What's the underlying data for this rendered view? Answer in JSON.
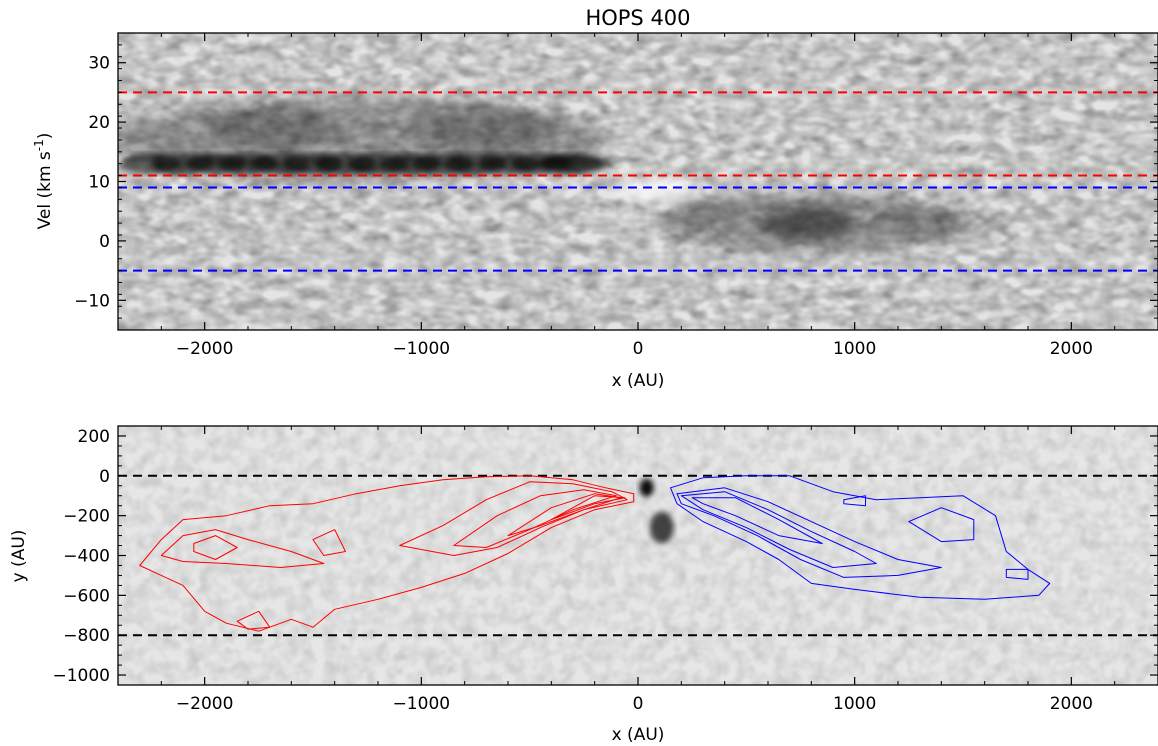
{
  "chart_data": [
    {
      "type": "heatmap",
      "title": "HOPS 400",
      "xlabel": "x (AU)",
      "ylabel_main": "Vel (km s",
      "ylabel_sup": "-1",
      "ylabel_close": ")",
      "xlim": [
        -2400,
        2400
      ],
      "ylim": [
        -15,
        35
      ],
      "xticks": [
        -2000,
        -1000,
        0,
        1000,
        2000
      ],
      "xtick_labels": [
        "−2000",
        "−1000",
        "0",
        "1000",
        "2000"
      ],
      "yticks": [
        -10,
        0,
        10,
        20,
        30
      ],
      "ytick_labels": [
        "−10",
        "0",
        "10",
        "20",
        "30"
      ],
      "colormap": "inverted grayscale",
      "dashed_lines": [
        {
          "axis": "y",
          "value": 25,
          "color": "#ff0000"
        },
        {
          "axis": "y",
          "value": 11,
          "color": "#ff0000"
        },
        {
          "axis": "y",
          "value": 9,
          "color": "#0000ff"
        },
        {
          "axis": "y",
          "value": -5,
          "color": "#0000ff"
        }
      ],
      "emission_features": [
        {
          "x_range": [
            -2400,
            -100
          ],
          "v_range": [
            10,
            25
          ],
          "peak_v": 13,
          "side": "red"
        },
        {
          "x_range": [
            100,
            2000
          ],
          "v_range": [
            -5,
            9
          ],
          "peak_v": 3,
          "side": "blue"
        }
      ]
    },
    {
      "type": "heatmap",
      "xlabel": "x (AU)",
      "ylabel": "y (AU)",
      "xlim": [
        -2400,
        2400
      ],
      "ylim": [
        -1050,
        250
      ],
      "xticks": [
        -2000,
        -1000,
        0,
        1000,
        2000
      ],
      "xtick_labels": [
        "−2000",
        "−1000",
        "0",
        "1000",
        "2000"
      ],
      "yticks": [
        200,
        0,
        -200,
        -400,
        -600,
        -800,
        -1000
      ],
      "ytick_labels": [
        "200",
        "0",
        "−200",
        "−400",
        "−600",
        "−800",
        "−1000"
      ],
      "colormap": "inverted grayscale",
      "dashed_lines": [
        {
          "axis": "y",
          "value": 0,
          "color": "#000000"
        },
        {
          "axis": "y",
          "value": -800,
          "color": "#000000"
        }
      ],
      "sources": [
        {
          "x": 40,
          "y": -60
        },
        {
          "x": 110,
          "y": -260
        }
      ],
      "contour_colors": {
        "red_lobe": "#ff0000",
        "blue_lobe": "#0000ff"
      },
      "red_contours": [
        [
          [
            -2300,
            -450
          ],
          [
            -2200,
            -320
          ],
          [
            -2100,
            -220
          ],
          [
            -1900,
            -200
          ],
          [
            -1700,
            -150
          ],
          [
            -1500,
            -140
          ],
          [
            -1300,
            -90
          ],
          [
            -1100,
            -50
          ],
          [
            -900,
            -20
          ],
          [
            -700,
            -5
          ],
          [
            -500,
            0
          ],
          [
            -300,
            -20
          ],
          [
            -150,
            -60
          ],
          [
            -20,
            -90
          ],
          [
            -20,
            -130
          ],
          [
            -200,
            -170
          ],
          [
            -400,
            -260
          ],
          [
            -600,
            -390
          ],
          [
            -800,
            -490
          ],
          [
            -1000,
            -560
          ],
          [
            -1200,
            -620
          ],
          [
            -1400,
            -670
          ],
          [
            -1500,
            -760
          ],
          [
            -1600,
            -720
          ],
          [
            -1750,
            -780
          ],
          [
            -1900,
            -740
          ],
          [
            -2000,
            -680
          ],
          [
            -2100,
            -550
          ],
          [
            -2200,
            -500
          ],
          [
            -2300,
            -450
          ]
        ],
        [
          [
            -2200,
            -400
          ],
          [
            -2100,
            -300
          ],
          [
            -1950,
            -270
          ],
          [
            -1800,
            -320
          ],
          [
            -1600,
            -380
          ],
          [
            -1450,
            -440
          ],
          [
            -1650,
            -460
          ],
          [
            -1900,
            -440
          ],
          [
            -2100,
            -430
          ],
          [
            -2200,
            -400
          ]
        ],
        [
          [
            -2050,
            -340
          ],
          [
            -1950,
            -300
          ],
          [
            -1850,
            -360
          ],
          [
            -1950,
            -420
          ],
          [
            -2050,
            -380
          ],
          [
            -2050,
            -340
          ]
        ],
        [
          [
            -1100,
            -350
          ],
          [
            -900,
            -250
          ],
          [
            -700,
            -120
          ],
          [
            -500,
            -30
          ],
          [
            -300,
            -40
          ],
          [
            -120,
            -80
          ],
          [
            -50,
            -120
          ],
          [
            -250,
            -170
          ],
          [
            -450,
            -260
          ],
          [
            -650,
            -360
          ],
          [
            -850,
            -400
          ],
          [
            -1100,
            -350
          ]
        ],
        [
          [
            -850,
            -350
          ],
          [
            -650,
            -200
          ],
          [
            -450,
            -100
          ],
          [
            -250,
            -70
          ],
          [
            -100,
            -100
          ],
          [
            -300,
            -170
          ],
          [
            -500,
            -270
          ],
          [
            -700,
            -360
          ],
          [
            -850,
            -350
          ]
        ],
        [
          [
            -600,
            -300
          ],
          [
            -400,
            -160
          ],
          [
            -200,
            -90
          ],
          [
            -80,
            -110
          ],
          [
            -250,
            -170
          ],
          [
            -450,
            -250
          ],
          [
            -600,
            -300
          ]
        ],
        [
          [
            -400,
            -220
          ],
          [
            -200,
            -100
          ],
          [
            -60,
            -110
          ],
          [
            -200,
            -140
          ],
          [
            -400,
            -220
          ]
        ],
        [
          [
            -1500,
            -320
          ],
          [
            -1400,
            -270
          ],
          [
            -1350,
            -380
          ],
          [
            -1450,
            -400
          ],
          [
            -1500,
            -320
          ]
        ],
        [
          [
            -1850,
            -730
          ],
          [
            -1750,
            -680
          ],
          [
            -1700,
            -760
          ],
          [
            -1800,
            -770
          ],
          [
            -1850,
            -730
          ]
        ]
      ],
      "blue_contours": [
        [
          [
            150,
            -60
          ],
          [
            300,
            -10
          ],
          [
            500,
            0
          ],
          [
            700,
            0
          ],
          [
            900,
            -80
          ],
          [
            1100,
            -120
          ],
          [
            1300,
            -110
          ],
          [
            1500,
            -100
          ],
          [
            1650,
            -200
          ],
          [
            1700,
            -380
          ],
          [
            1800,
            -470
          ],
          [
            1900,
            -540
          ],
          [
            1850,
            -600
          ],
          [
            1600,
            -620
          ],
          [
            1300,
            -610
          ],
          [
            1000,
            -570
          ],
          [
            800,
            -540
          ],
          [
            650,
            -420
          ],
          [
            500,
            -330
          ],
          [
            300,
            -230
          ],
          [
            180,
            -140
          ],
          [
            150,
            -60
          ]
        ],
        [
          [
            180,
            -90
          ],
          [
            400,
            -60
          ],
          [
            600,
            -130
          ],
          [
            800,
            -230
          ],
          [
            1000,
            -330
          ],
          [
            1200,
            -420
          ],
          [
            1400,
            -460
          ],
          [
            1200,
            -500
          ],
          [
            950,
            -510
          ],
          [
            750,
            -420
          ],
          [
            550,
            -300
          ],
          [
            350,
            -200
          ],
          [
            200,
            -140
          ],
          [
            180,
            -90
          ]
        ],
        [
          [
            200,
            -100
          ],
          [
            400,
            -80
          ],
          [
            600,
            -170
          ],
          [
            800,
            -280
          ],
          [
            1000,
            -380
          ],
          [
            1100,
            -440
          ],
          [
            900,
            -460
          ],
          [
            700,
            -370
          ],
          [
            500,
            -260
          ],
          [
            300,
            -170
          ],
          [
            200,
            -100
          ]
        ],
        [
          [
            250,
            -110
          ],
          [
            450,
            -110
          ],
          [
            650,
            -220
          ],
          [
            850,
            -340
          ],
          [
            650,
            -300
          ],
          [
            450,
            -200
          ],
          [
            300,
            -140
          ],
          [
            250,
            -110
          ]
        ],
        [
          [
            1250,
            -230
          ],
          [
            1400,
            -160
          ],
          [
            1550,
            -220
          ],
          [
            1550,
            -320
          ],
          [
            1400,
            -330
          ],
          [
            1250,
            -230
          ]
        ],
        [
          [
            1700,
            -470
          ],
          [
            1800,
            -470
          ],
          [
            1800,
            -520
          ],
          [
            1700,
            -510
          ],
          [
            1700,
            -470
          ]
        ],
        [
          [
            950,
            -120
          ],
          [
            1050,
            -100
          ],
          [
            1050,
            -150
          ],
          [
            950,
            -140
          ],
          [
            950,
            -120
          ]
        ]
      ]
    }
  ],
  "colors": {
    "red_dash": "#ff0000",
    "blue_dash": "#0000ff",
    "black_dash": "#000000"
  }
}
